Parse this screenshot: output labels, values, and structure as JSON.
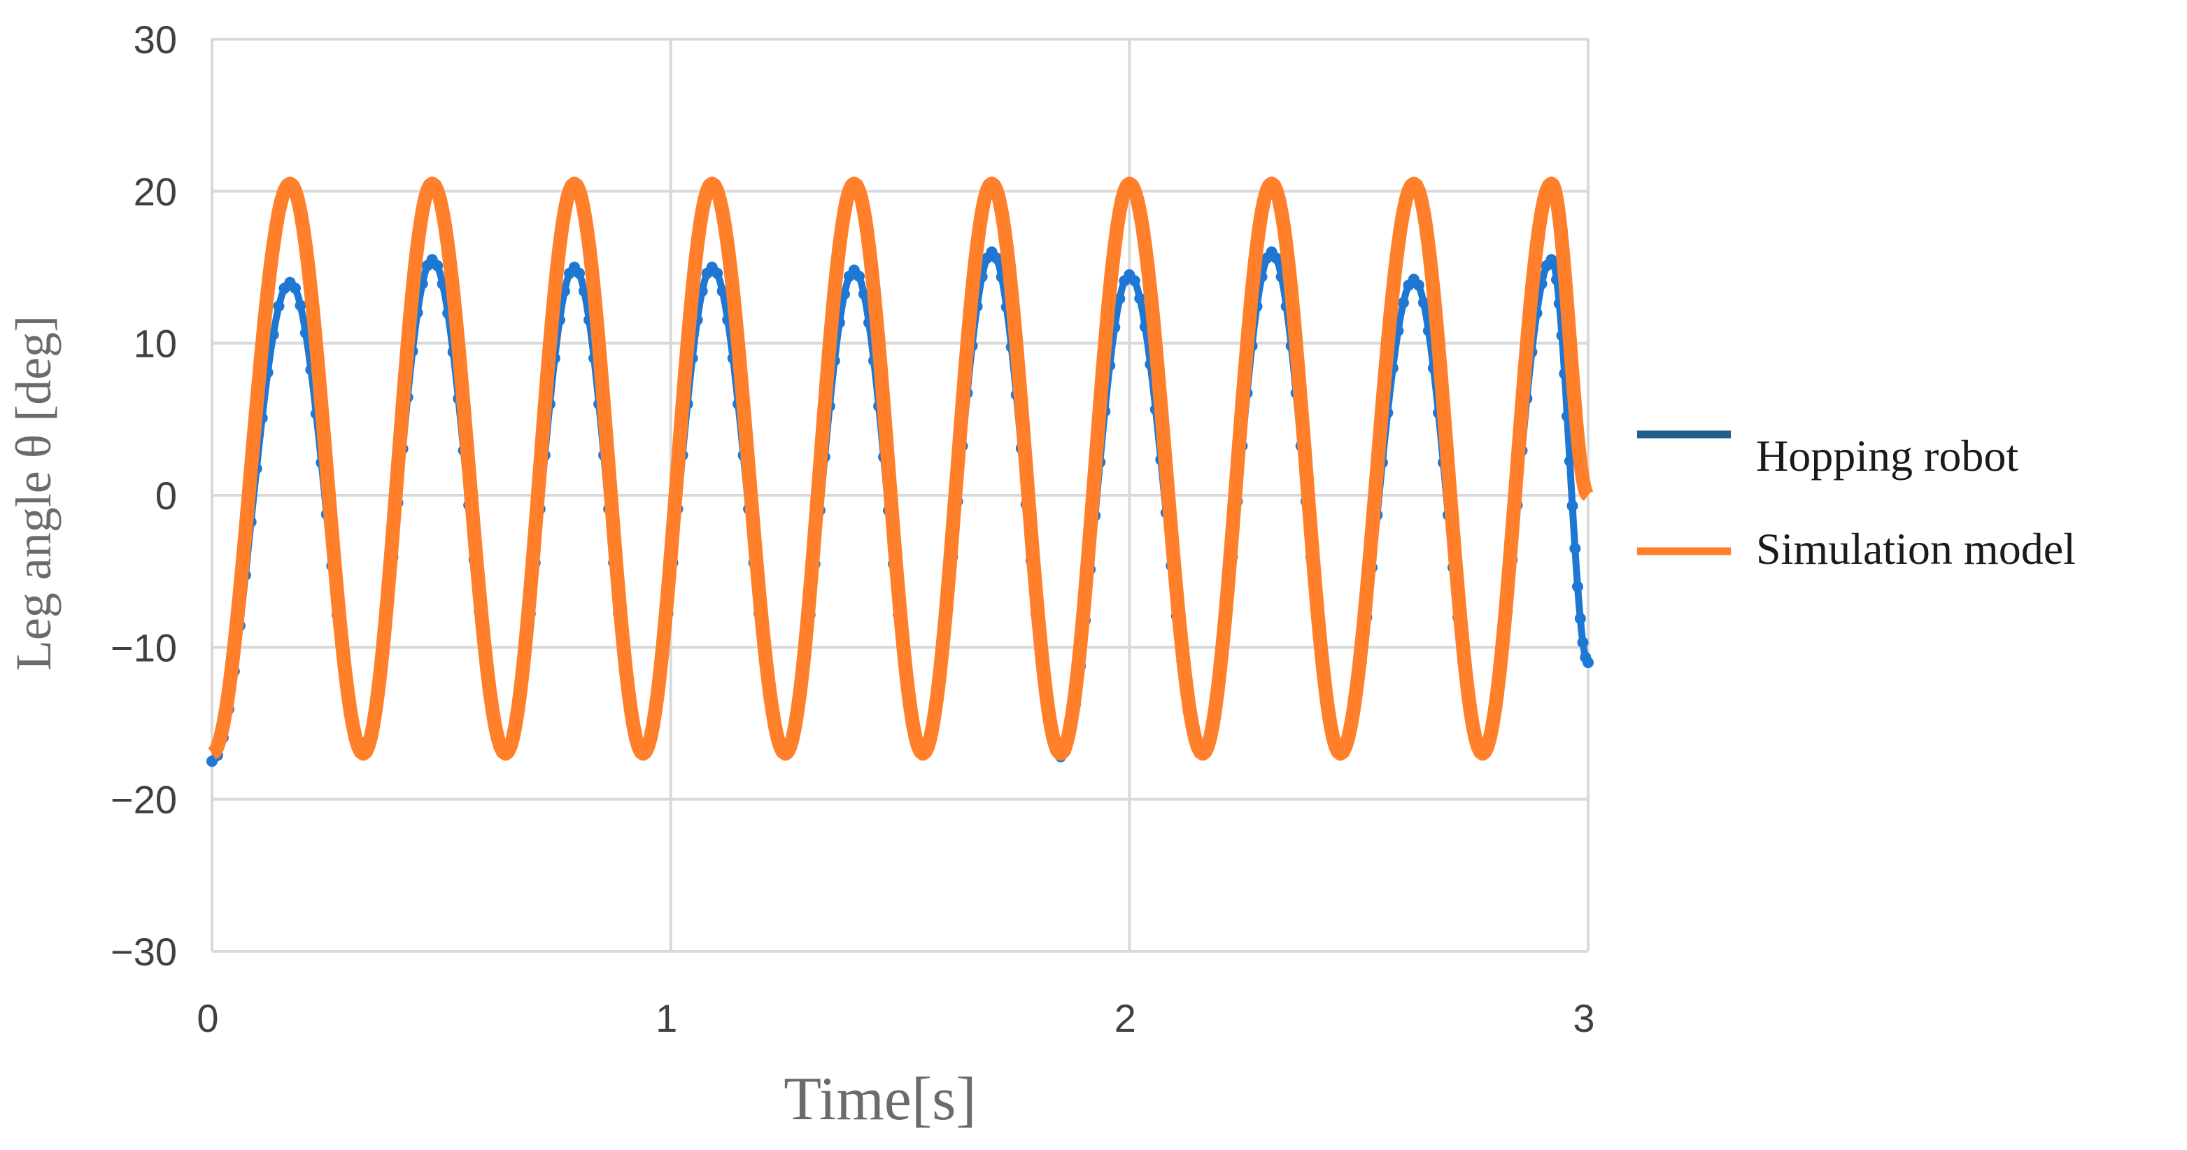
{
  "chart_data": {
    "type": "line",
    "title": "",
    "xlabel": "Time[s]",
    "ylabel": "Leg angle θ [deg]",
    "xlim": [
      0,
      3
    ],
    "ylim": [
      -30,
      30
    ],
    "x_ticks": [
      0,
      1,
      2,
      3
    ],
    "y_ticks": [
      30,
      20,
      10,
      0,
      -10,
      -20,
      -30
    ],
    "x_tick_labels": [
      "0",
      "1",
      "2",
      "3"
    ],
    "y_tick_labels": [
      "30",
      "20",
      "10",
      "0",
      "−10",
      "−20",
      "−30"
    ],
    "grid": true,
    "legend_position": "right",
    "series": [
      {
        "name": "Hopping robot",
        "color": "#1f77d4",
        "legend_color": "#1f5f8b",
        "x": [
          0.0,
          0.17,
          0.33,
          0.48,
          0.64,
          0.79,
          0.94,
          1.09,
          1.25,
          1.4,
          1.55,
          1.7,
          1.85,
          2.0,
          2.16,
          2.31,
          2.46,
          2.62,
          2.77,
          2.92,
          3.0
        ],
        "y": [
          -17.5,
          14.0,
          -16.5,
          15.5,
          -16.8,
          15.0,
          -16.8,
          15.0,
          -16.8,
          14.8,
          -16.8,
          16.0,
          -17.2,
          14.5,
          -16.8,
          16.0,
          -16.8,
          14.2,
          -16.8,
          15.5,
          -11.0
        ]
      },
      {
        "name": "Simulation model",
        "color": "#ff7f2a",
        "x": [
          0.0,
          0.17,
          0.33,
          0.48,
          0.64,
          0.79,
          0.94,
          1.09,
          1.25,
          1.4,
          1.55,
          1.7,
          1.85,
          2.0,
          2.16,
          2.31,
          2.46,
          2.62,
          2.77,
          2.92,
          3.0
        ],
        "y": [
          -17.0,
          20.5,
          -17.0,
          20.5,
          -17.0,
          20.5,
          -17.0,
          20.5,
          -17.0,
          20.5,
          -17.0,
          20.5,
          -17.0,
          20.5,
          -17.0,
          20.5,
          -17.0,
          20.5,
          -17.0,
          20.5,
          0.0
        ]
      }
    ]
  }
}
